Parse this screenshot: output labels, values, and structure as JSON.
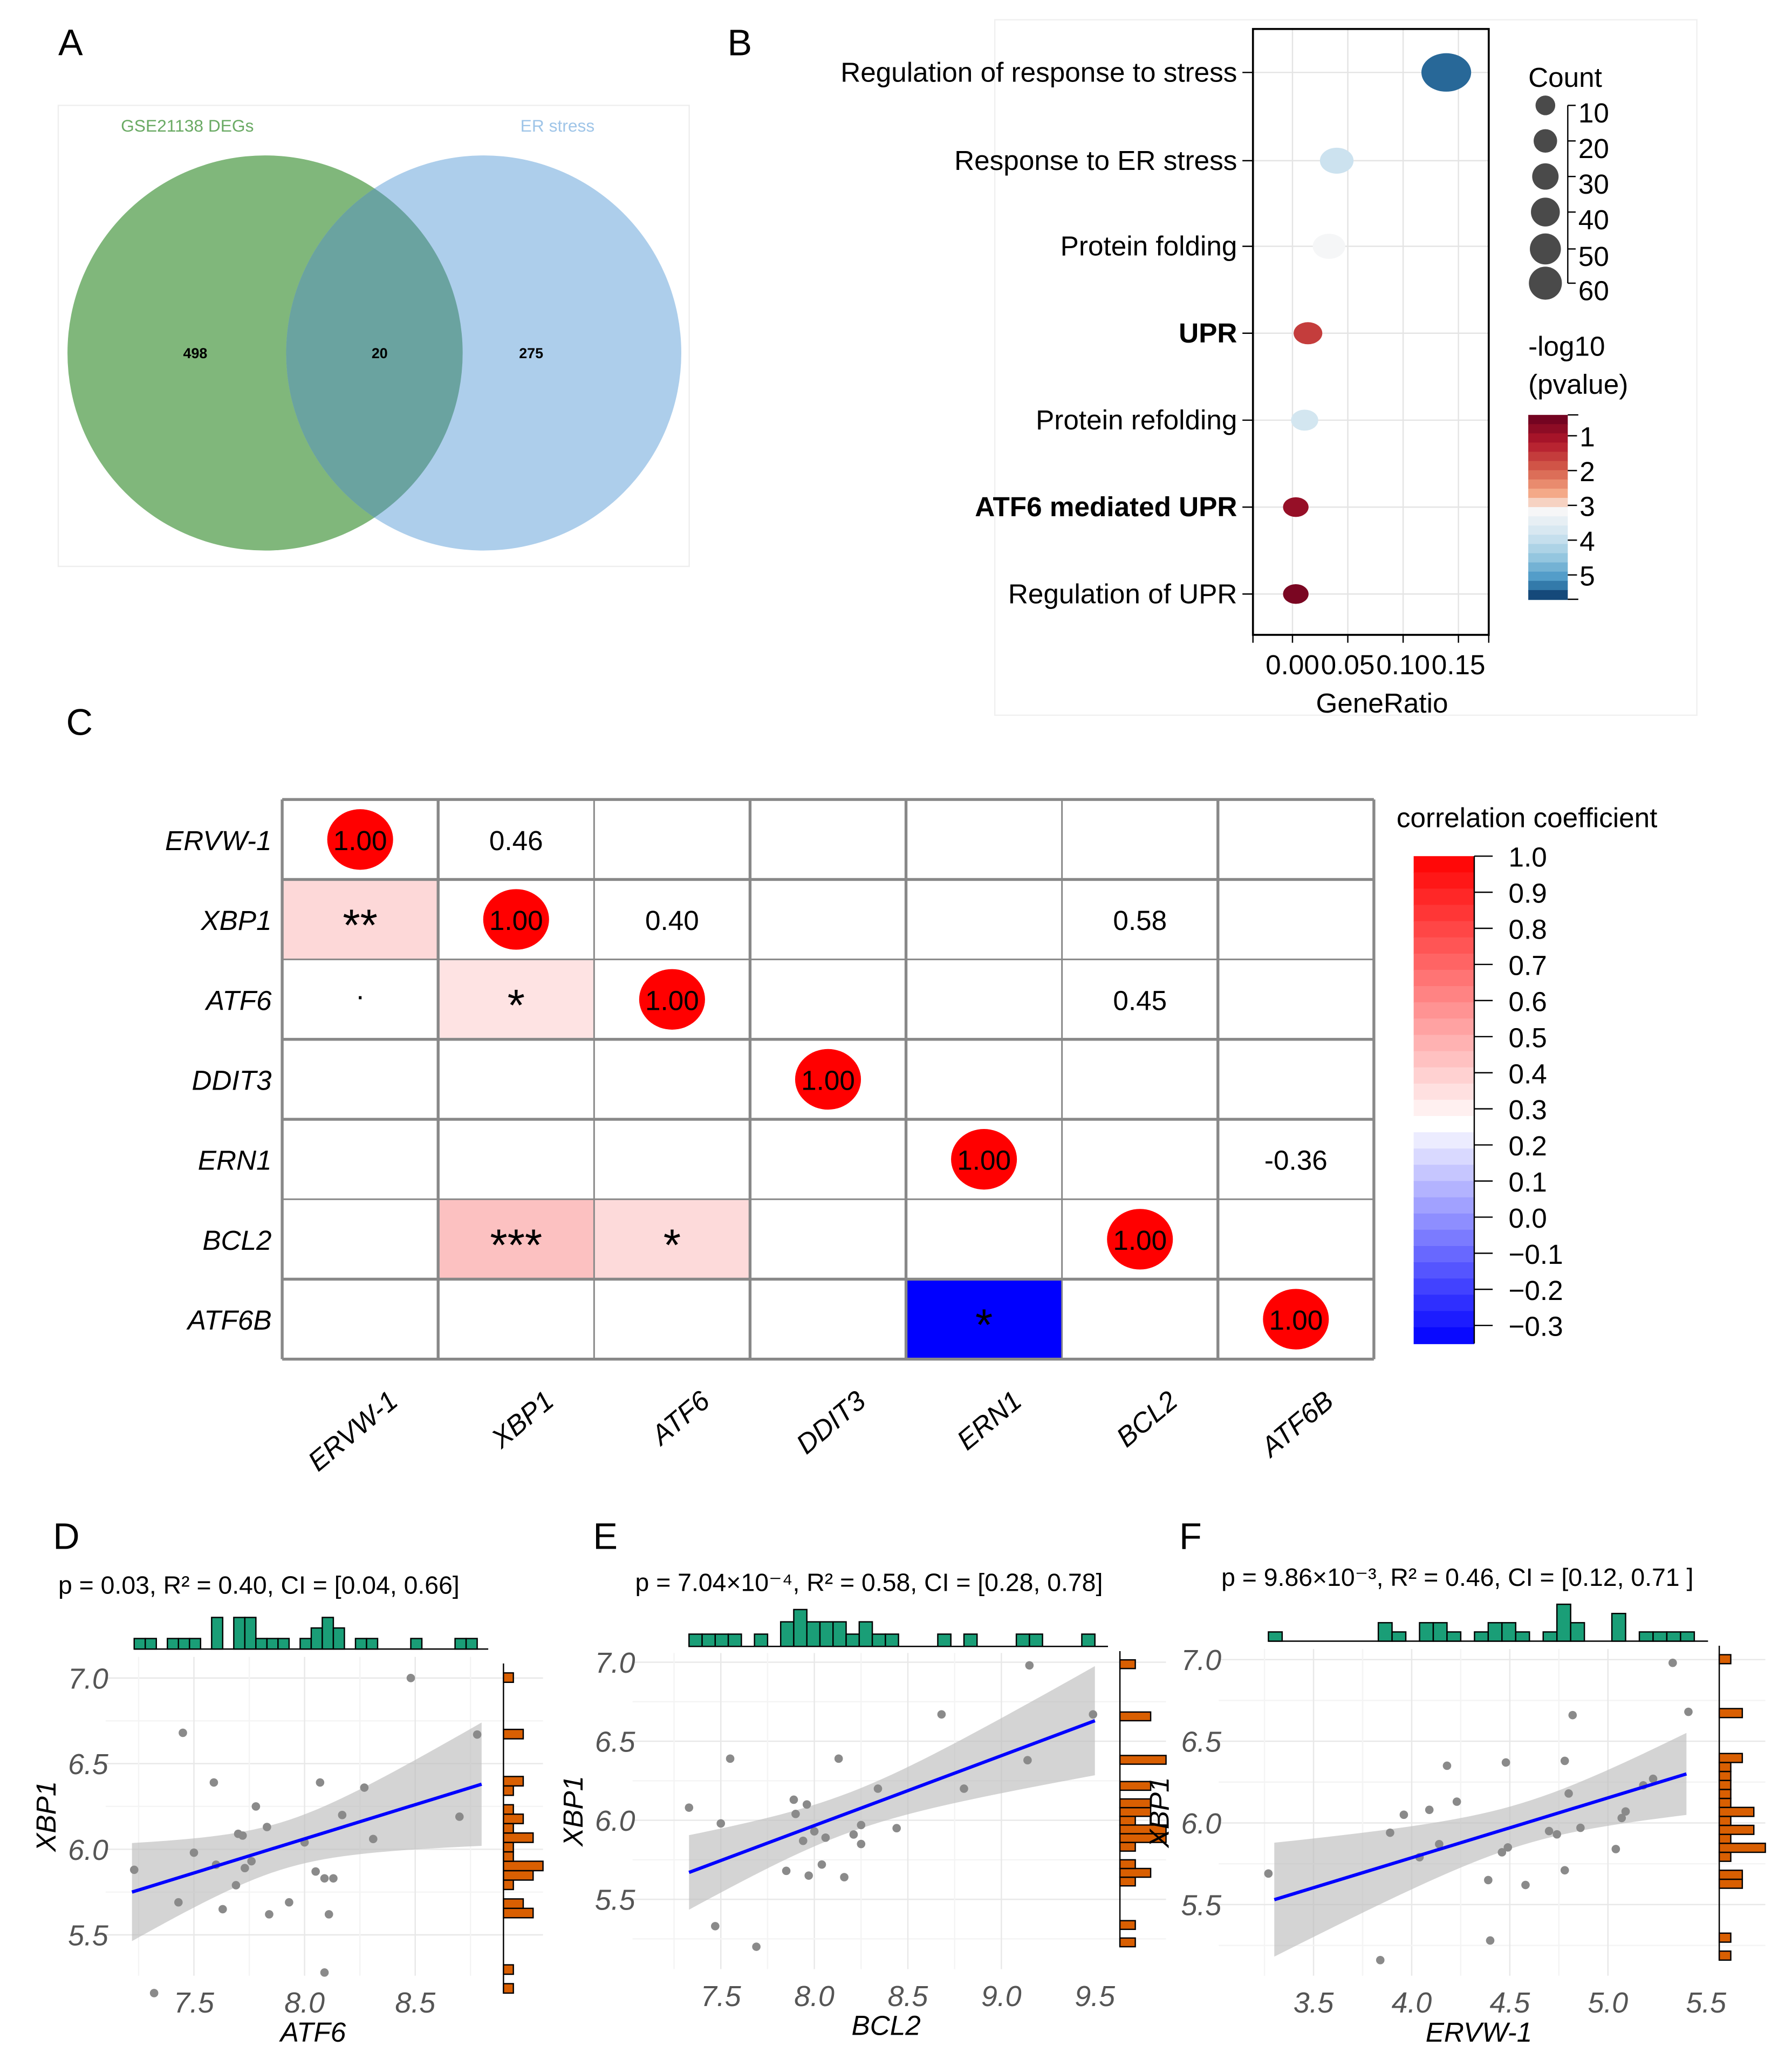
{
  "panel_labels": [
    "A",
    "B",
    "C",
    "D",
    "E",
    "F"
  ],
  "chart_data": [
    {
      "type": "venn",
      "panel": "A",
      "sets": [
        {
          "name": "GSE21138 DEGs",
          "only": 498,
          "color": "#6aaa64"
        },
        {
          "name": "ER stress",
          "only": 275,
          "color": "#9fc5e8"
        }
      ],
      "intersection": 20
    },
    {
      "type": "scatter",
      "subtype": "dotplot",
      "panel": "B",
      "xlabel": "GeneRatio",
      "xticks": [
        "0.00",
        "0.05",
        "0.10",
        "0.15"
      ],
      "xlim": [
        -0.01,
        0.178
      ],
      "terms": [
        {
          "label": "Regulation of response to stress",
          "gene_ratio": 0.139,
          "count": 60,
          "neg_log10_p": 5.4,
          "highlight": false
        },
        {
          "label": "Response to ER stress",
          "gene_ratio": 0.04,
          "count": 20,
          "neg_log10_p": 3.9,
          "highlight": false
        },
        {
          "label": "Protein folding",
          "gene_ratio": 0.033,
          "count": 18,
          "neg_log10_p": 3.2,
          "highlight": false
        },
        {
          "label": "UPR",
          "gene_ratio": 0.014,
          "count": 12,
          "neg_log10_p": 1.6,
          "highlight": true
        },
        {
          "label": "Protein refolding",
          "gene_ratio": 0.011,
          "count": 10,
          "neg_log10_p": 3.8,
          "highlight": false
        },
        {
          "label": "ATF6 mediated UPR",
          "gene_ratio": 0.003,
          "count": 8,
          "neg_log10_p": 0.9,
          "highlight": true
        },
        {
          "label": "Regulation of UPR",
          "gene_ratio": 0.003,
          "count": 8,
          "neg_log10_p": 0.6,
          "highlight": true,
          "highlight_color": "none"
        }
      ],
      "size_legend": {
        "title": "Count",
        "values": [
          10,
          20,
          30,
          40,
          50,
          60
        ]
      },
      "color_legend": {
        "title_line1": "-log10",
        "title_line2": "(pvalue)",
        "ticks": [
          1,
          2,
          3,
          4,
          5
        ],
        "range": [
          0.4,
          5.7
        ]
      },
      "highlight_color": "#ff0000"
    },
    {
      "type": "heatmap",
      "panel": "C",
      "genes": [
        "ERVW-1",
        "XBP1",
        "ATF6",
        "DDIT3",
        "ERN1",
        "BCL2",
        "ATF6B"
      ],
      "diagonal_label": "1.00",
      "upper_values": [
        {
          "row": 0,
          "col": 1,
          "text": "0.46"
        },
        {
          "row": 1,
          "col": 2,
          "text": "0.40"
        },
        {
          "row": 1,
          "col": 5,
          "text": "0.58"
        },
        {
          "row": 2,
          "col": 5,
          "text": "0.45"
        },
        {
          "row": 4,
          "col": 6,
          "text": "-0.36"
        }
      ],
      "lower_cells": [
        {
          "row": 1,
          "col": 0,
          "r": 0.46,
          "sig": "**"
        },
        {
          "row": 2,
          "col": 0,
          "r": 0.3,
          "sig": "."
        },
        {
          "row": 2,
          "col": 1,
          "r": 0.4,
          "sig": "*"
        },
        {
          "row": 5,
          "col": 1,
          "r": 0.58,
          "sig": "***"
        },
        {
          "row": 5,
          "col": 2,
          "r": 0.45,
          "sig": "*"
        },
        {
          "row": 6,
          "col": 4,
          "r": -0.36,
          "sig": "*"
        }
      ],
      "colorbar": {
        "title": "correlation coefficient",
        "ticks": [
          "1.0",
          "0.9",
          "0.8",
          "0.7",
          "0.6",
          "0.5",
          "0.4",
          "0.3",
          "0.2",
          "0.1",
          "0.0",
          "−0.1",
          "−0.2",
          "−0.3"
        ],
        "range": [
          -0.35,
          1.0
        ]
      }
    },
    {
      "type": "scatter",
      "panel": "D",
      "subtitle": "p = 0.03, R² = 0.40, CI = [0.04, 0.66]",
      "xlabel": "ATF6",
      "ylabel": "XBP1",
      "xticks": [
        "7.5",
        "8.0",
        "8.5"
      ],
      "yticks": [
        "5.5",
        "6.0",
        "6.5",
        "7.0"
      ],
      "fit": {
        "x": [
          7.22,
          8.8
        ],
        "y": [
          5.75,
          6.38
        ]
      },
      "points": [
        [
          7.23,
          5.88
        ],
        [
          7.32,
          5.16
        ],
        [
          7.45,
          6.68
        ],
        [
          7.43,
          5.69
        ],
        [
          7.5,
          5.98
        ],
        [
          7.59,
          6.39
        ],
        [
          7.6,
          5.91
        ],
        [
          7.63,
          5.65
        ],
        [
          7.69,
          5.79
        ],
        [
          7.7,
          6.09
        ],
        [
          7.72,
          6.08
        ],
        [
          7.73,
          5.89
        ],
        [
          7.76,
          5.93
        ],
        [
          7.78,
          6.25
        ],
        [
          7.83,
          6.13
        ],
        [
          7.84,
          5.62
        ],
        [
          7.93,
          5.69
        ],
        [
          8.0,
          6.04
        ],
        [
          8.05,
          5.87
        ],
        [
          8.07,
          6.39
        ],
        [
          8.09,
          5.83
        ],
        [
          8.09,
          5.28
        ],
        [
          8.11,
          5.62
        ],
        [
          8.13,
          5.83
        ],
        [
          8.17,
          6.2
        ],
        [
          8.27,
          6.36
        ],
        [
          8.31,
          6.06
        ],
        [
          8.48,
          7.0
        ],
        [
          8.7,
          6.19
        ],
        [
          8.78,
          6.67
        ]
      ]
    },
    {
      "type": "scatter",
      "panel": "E",
      "subtitle": "p = 7.04×10⁻⁴, R² = 0.58, CI  = [0.28, 0.78]",
      "xlabel": "BCL2",
      "ylabel": "XBP1",
      "xticks": [
        "7.5",
        "8.0",
        "8.5",
        "9.0",
        "9.5"
      ],
      "yticks": [
        "5.5",
        "6.0",
        "6.5",
        "7.0"
      ],
      "fit": {
        "x": [
          7.33,
          9.5
        ],
        "y": [
          5.67,
          6.63
        ]
      },
      "points": [
        [
          7.33,
          6.08
        ],
        [
          7.47,
          5.33
        ],
        [
          7.5,
          5.98
        ],
        [
          7.55,
          6.39
        ],
        [
          7.69,
          5.2
        ],
        [
          7.85,
          5.68
        ],
        [
          7.89,
          6.13
        ],
        [
          7.9,
          6.04
        ],
        [
          7.94,
          5.87
        ],
        [
          7.96,
          6.1
        ],
        [
          7.97,
          5.65
        ],
        [
          8.0,
          5.93
        ],
        [
          8.04,
          5.72
        ],
        [
          8.06,
          5.89
        ],
        [
          8.13,
          6.39
        ],
        [
          8.16,
          5.64
        ],
        [
          8.21,
          5.91
        ],
        [
          8.25,
          5.85
        ],
        [
          8.25,
          5.97
        ],
        [
          8.34,
          6.2
        ],
        [
          8.44,
          5.95
        ],
        [
          8.68,
          6.67
        ],
        [
          8.8,
          6.2
        ],
        [
          9.15,
          6.98
        ],
        [
          9.14,
          6.38
        ],
        [
          9.49,
          6.67
        ]
      ]
    },
    {
      "type": "scatter",
      "panel": "F",
      "subtitle": "p = 9.86×10⁻³, R² = 0.46, CI  = [0.12, 0.71 ]",
      "xlabel": "ERVW-1",
      "ylabel": "XBP1",
      "xticks": [
        "3.5",
        "4.0",
        "4.5",
        "5.0",
        "5.5"
      ],
      "yticks": [
        "5.5",
        "6.0",
        "6.5",
        "7.0"
      ],
      "fit": {
        "x": [
          3.3,
          5.4
        ],
        "y": [
          5.53,
          6.3
        ]
      },
      "points": [
        [
          3.27,
          5.69
        ],
        [
          3.84,
          5.16
        ],
        [
          3.89,
          5.94
        ],
        [
          3.96,
          6.05
        ],
        [
          4.04,
          5.79
        ],
        [
          4.09,
          6.08
        ],
        [
          4.14,
          5.87
        ],
        [
          4.18,
          6.35
        ],
        [
          4.23,
          6.13
        ],
        [
          4.39,
          5.65
        ],
        [
          4.4,
          5.28
        ],
        [
          4.46,
          5.82
        ],
        [
          4.48,
          6.37
        ],
        [
          4.49,
          5.85
        ],
        [
          4.58,
          5.62
        ],
        [
          4.7,
          5.95
        ],
        [
          4.74,
          5.93
        ],
        [
          4.78,
          5.71
        ],
        [
          4.78,
          6.38
        ],
        [
          4.8,
          6.18
        ],
        [
          4.82,
          6.66
        ],
        [
          4.86,
          5.97
        ],
        [
          5.04,
          5.84
        ],
        [
          5.07,
          6.03
        ],
        [
          5.09,
          6.07
        ],
        [
          5.18,
          6.23
        ],
        [
          5.23,
          6.27
        ],
        [
          5.33,
          6.98
        ],
        [
          5.41,
          6.68
        ]
      ]
    }
  ]
}
